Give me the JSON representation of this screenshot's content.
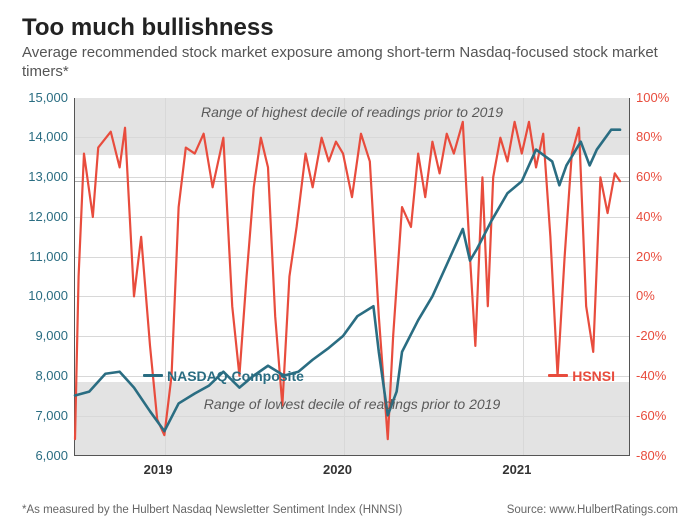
{
  "title": "Too much bullishness",
  "subtitle": "Average recommended stock market exposure among short-term Nasdaq-focused stock market timers*",
  "footnote_left": "*As measured by the Hulbert Nasdaq Newsletter Sentiment Index (HNNSI)",
  "footnote_right": "Source: www.HulbertRatings.com",
  "chart": {
    "type": "dual-axis-line",
    "x_start_year": 2018.5,
    "x_end_year": 2021.6,
    "x_ticks": [
      2019,
      2020,
      2021
    ],
    "x_tick_labels": [
      "2019",
      "2020",
      "2021"
    ],
    "left_axis": {
      "label": "NASDAQ Composite",
      "color": "#2a6d82",
      "min": 6000,
      "max": 15000,
      "step": 1000,
      "tick_labels": [
        "6,000",
        "7,000",
        "8,000",
        "9,000",
        "10,000",
        "11,000",
        "12,000",
        "13,000",
        "14,000",
        "15,000"
      ]
    },
    "right_axis": {
      "label": "HSNSI",
      "color": "#e84c3d",
      "min": -80,
      "max": 100,
      "step": 20,
      "tick_labels": [
        "-80%",
        "-60%",
        "-40%",
        "-20%",
        "0%",
        "20%",
        "40%",
        "60%",
        "80%",
        "100%"
      ]
    },
    "grid_color": "#d8d8d8",
    "background_color": "#ffffff",
    "top_band": {
      "y_from_pct": 71,
      "y_to_pct": 100,
      "label": "Range of highest decile of readings prior to 2019",
      "color": "#e3e3e3"
    },
    "bottom_band": {
      "y_from_pct": -80,
      "y_to_pct": -43,
      "label": "Range of lowest decile of readings prior to 2019",
      "color": "#e3e3e3"
    },
    "current_hsnsi_line": 58,
    "series_nasdaq": [
      [
        2018.5,
        7500
      ],
      [
        2018.58,
        7600
      ],
      [
        2018.67,
        8050
      ],
      [
        2018.75,
        8100
      ],
      [
        2018.83,
        7700
      ],
      [
        2018.92,
        7100
      ],
      [
        2019.0,
        6600
      ],
      [
        2019.08,
        7300
      ],
      [
        2019.17,
        7550
      ],
      [
        2019.25,
        7750
      ],
      [
        2019.33,
        8100
      ],
      [
        2019.42,
        7700
      ],
      [
        2019.5,
        8000
      ],
      [
        2019.58,
        8250
      ],
      [
        2019.67,
        8000
      ],
      [
        2019.75,
        8100
      ],
      [
        2019.83,
        8400
      ],
      [
        2019.92,
        8700
      ],
      [
        2020.0,
        9000
      ],
      [
        2020.08,
        9500
      ],
      [
        2020.17,
        9750
      ],
      [
        2020.2,
        8600
      ],
      [
        2020.25,
        7000
      ],
      [
        2020.3,
        7600
      ],
      [
        2020.33,
        8600
      ],
      [
        2020.42,
        9400
      ],
      [
        2020.5,
        10000
      ],
      [
        2020.58,
        10800
      ],
      [
        2020.67,
        11700
      ],
      [
        2020.71,
        10900
      ],
      [
        2020.75,
        11200
      ],
      [
        2020.83,
        11900
      ],
      [
        2020.92,
        12600
      ],
      [
        2021.0,
        12900
      ],
      [
        2021.08,
        13700
      ],
      [
        2021.17,
        13400
      ],
      [
        2021.21,
        12800
      ],
      [
        2021.25,
        13300
      ],
      [
        2021.33,
        13900
      ],
      [
        2021.38,
        13300
      ],
      [
        2021.42,
        13700
      ],
      [
        2021.5,
        14200
      ],
      [
        2021.55,
        14200
      ]
    ],
    "series_hsnsi": [
      [
        2018.5,
        -72
      ],
      [
        2018.52,
        10
      ],
      [
        2018.55,
        72
      ],
      [
        2018.6,
        40
      ],
      [
        2018.63,
        75
      ],
      [
        2018.7,
        83
      ],
      [
        2018.75,
        65
      ],
      [
        2018.78,
        85
      ],
      [
        2018.83,
        0
      ],
      [
        2018.87,
        30
      ],
      [
        2018.92,
        -25
      ],
      [
        2018.96,
        -62
      ],
      [
        2019.0,
        -70
      ],
      [
        2019.04,
        -40
      ],
      [
        2019.08,
        45
      ],
      [
        2019.12,
        75
      ],
      [
        2019.17,
        72
      ],
      [
        2019.22,
        82
      ],
      [
        2019.27,
        55
      ],
      [
        2019.33,
        80
      ],
      [
        2019.38,
        -5
      ],
      [
        2019.42,
        -40
      ],
      [
        2019.46,
        10
      ],
      [
        2019.5,
        55
      ],
      [
        2019.54,
        80
      ],
      [
        2019.58,
        65
      ],
      [
        2019.62,
        -10
      ],
      [
        2019.66,
        -55
      ],
      [
        2019.7,
        10
      ],
      [
        2019.74,
        35
      ],
      [
        2019.79,
        72
      ],
      [
        2019.83,
        55
      ],
      [
        2019.88,
        80
      ],
      [
        2019.92,
        68
      ],
      [
        2019.96,
        78
      ],
      [
        2020.0,
        72
      ],
      [
        2020.05,
        50
      ],
      [
        2020.1,
        82
      ],
      [
        2020.15,
        68
      ],
      [
        2020.2,
        -10
      ],
      [
        2020.25,
        -72
      ],
      [
        2020.28,
        -20
      ],
      [
        2020.33,
        45
      ],
      [
        2020.38,
        35
      ],
      [
        2020.42,
        72
      ],
      [
        2020.46,
        50
      ],
      [
        2020.5,
        78
      ],
      [
        2020.54,
        62
      ],
      [
        2020.58,
        82
      ],
      [
        2020.62,
        72
      ],
      [
        2020.67,
        88
      ],
      [
        2020.71,
        20
      ],
      [
        2020.74,
        -25
      ],
      [
        2020.78,
        60
      ],
      [
        2020.81,
        -5
      ],
      [
        2020.84,
        60
      ],
      [
        2020.88,
        80
      ],
      [
        2020.92,
        68
      ],
      [
        2020.96,
        88
      ],
      [
        2021.0,
        72
      ],
      [
        2021.04,
        88
      ],
      [
        2021.08,
        65
      ],
      [
        2021.12,
        82
      ],
      [
        2021.16,
        30
      ],
      [
        2021.2,
        -40
      ],
      [
        2021.24,
        20
      ],
      [
        2021.28,
        72
      ],
      [
        2021.32,
        85
      ],
      [
        2021.36,
        -5
      ],
      [
        2021.4,
        -28
      ],
      [
        2021.44,
        60
      ],
      [
        2021.48,
        42
      ],
      [
        2021.52,
        62
      ],
      [
        2021.55,
        58
      ]
    ]
  }
}
